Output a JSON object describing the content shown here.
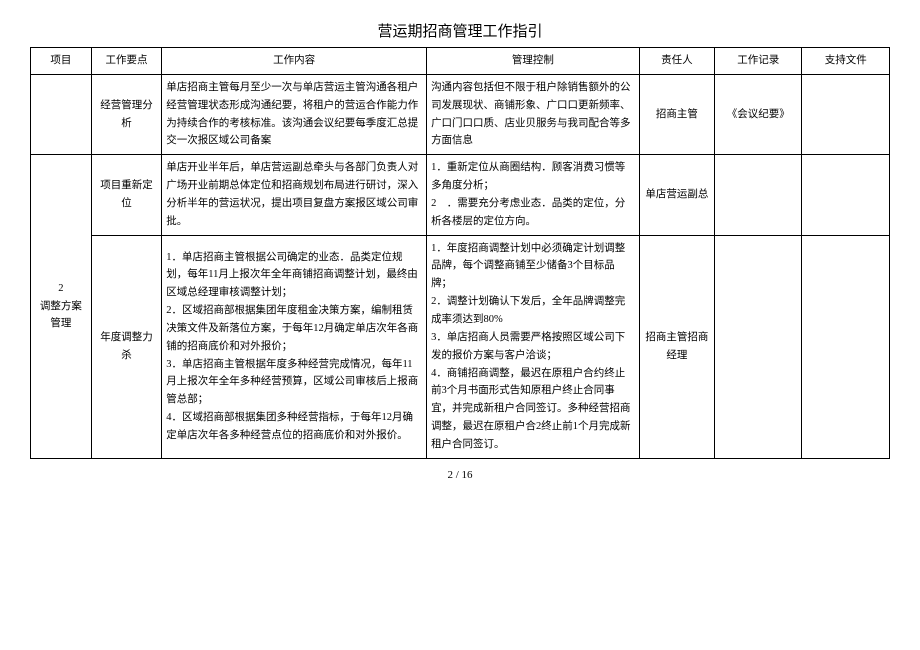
{
  "title": "营运期招商管理工作指引",
  "headers": {
    "c1": "项目",
    "c2": "工作要点",
    "c3": "工作内容",
    "c4": "管理控制",
    "c5": "责任人",
    "c6": "工作记录",
    "c7": "支持文件"
  },
  "rows": {
    "r1": {
      "project": "",
      "point": "经营管理分析",
      "content": "单店招商主管每月至少一次与单店营运主管沟通各租户经营管理状态形成沟通纪要，将租户的营运合作能力作为持续合作的考核标准。该沟通会议纪要每季度汇总提交一次报区域公司备案",
      "control": "沟通内容包括但不限于租户除销售额外的公司发展现状、商铺形象、广口口更新频率、广口门口口质、店业贝服务与我司配合等多方面信息",
      "person": "招商主管",
      "record": "《会议纪要》",
      "file": ""
    },
    "r2": {
      "project": "2\n调整方案管理",
      "point": "项目重新定位",
      "content": "单店开业半年后，单店营运副总牵头与各部门负责人对广场开业前期总体定位和招商规划布局进行研讨，深入分析半年的营运状况，提出项目复盘方案报区域公司审批。",
      "control": "1．重新定位从商圈结构．顾客消费习惯等多角度分析；\n2　．需要充分考虑业态．品类的定位，分析各楼层的定位方向。",
      "person": "单店营运副总",
      "record": "",
      "file": ""
    },
    "r3": {
      "point": "年度调整力杀",
      "content": "1．单店招商主管根据公司确定的业态．品类定位规划，每年11月上报次年全年商铺招商调整计划，最终由区域总经理审核调整计划；\n2．区域招商部根据集团年度租金决策方案，编制租赁决策文件及新落位方案，于每年12月确定单店次年各商铺的招商底价和对外报价；\n3．单店招商主管根据年度多种经营完成情况，每年11月上报次年全年多种经营预算，区域公司审核后上报商管总部；\n4．区域招商部根据集团多种经营指标，于每年12月确定单店次年各多种经营点位的招商底价和对外报价。",
      "control": "1．年度招商调整计划中必须确定计划调整品牌，每个调整商铺至少储备3个目标品牌；\n2．调整计划确认下发后，全年品牌调整完成率须达到80%\n3．单店招商人员需要严格按照区域公司下发的报价方案与客户洽谈；\n4．商铺招商调整，最迟在原租户合约终止前3个月书面形式告知原租户终止合同事宜，并完成新租户合同签订。多种经营招商调整，最迟在原租户合2终止前1个月完成新租户合同签订。",
      "person": "招商主管招商经理",
      "record": "",
      "file": ""
    }
  },
  "footer": "2 / 16"
}
